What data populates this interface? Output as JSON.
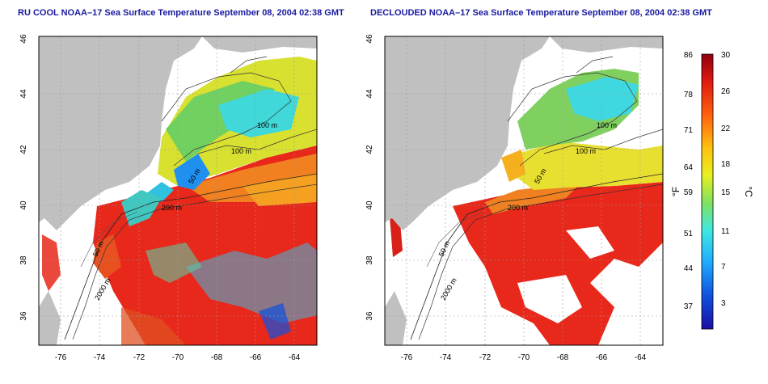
{
  "titles": {
    "left": "RU COOL NOAA–17 Sea Surface Temperature September 08, 2004 02:38 GMT",
    "right": "DECLOUDED NOAA–17 Sea Surface Temperature September 08, 2004 02:38 GMT"
  },
  "x_ticks": [
    "-76",
    "-74",
    "-72",
    "-70",
    "-68",
    "-66",
    "-64"
  ],
  "y_ticks": [
    "36",
    "38",
    "40",
    "42",
    "44",
    "46"
  ],
  "contours": {
    "left": [
      "100 m",
      "100 m",
      "50 m",
      "200 m",
      "50 m",
      "2000 m"
    ],
    "right": [
      "100 m",
      "100 m",
      "50 m",
      "200 m",
      "50 m",
      "2000 m"
    ]
  },
  "colorbar": {
    "f_ticks": [
      "86",
      "78",
      "71",
      "64",
      "59",
      "51",
      "44",
      "37"
    ],
    "c_ticks": [
      "30",
      "26",
      "22",
      "18",
      "15",
      "11",
      "7",
      "3"
    ],
    "f_unit": "°F",
    "c_unit": "°C"
  },
  "colors": {
    "land": "#c0c0c0",
    "title": "#1a1aa0",
    "warm": "#e8281a",
    "cold": "#1030d0"
  }
}
